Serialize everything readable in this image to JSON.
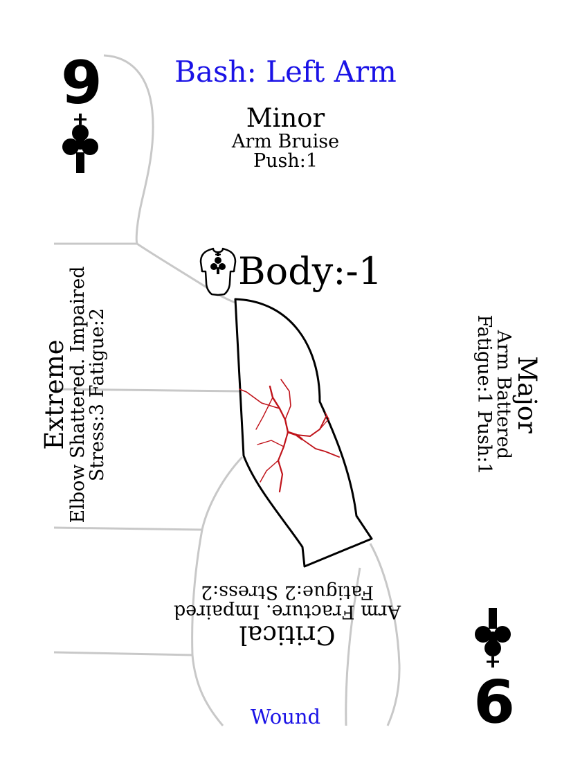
{
  "title": "Bash: Left Arm",
  "rank": "9",
  "suit_icon": "club-icon",
  "body_icon": "torso-club-icon",
  "accent_color": "#1a12e6",
  "wound_color": "#c0141b",
  "footer_label": "Wound",
  "body_stat": "Body:-1",
  "minor": {
    "heading": "Minor",
    "line1": "Arm Bruise",
    "line2": "Push:1"
  },
  "major": {
    "heading": "Major",
    "line1": "Arm Battered",
    "line2": "Fatigue:1 Push:1"
  },
  "critical": {
    "heading": "Critical",
    "line1": "Arm Fracture. Impaired",
    "line2": "Fatigue:2 Stress:2"
  },
  "extreme": {
    "heading": "Extreme",
    "line1": "Elbow Shattered. Impaired",
    "line2": "Stress:3 Fatigue:2"
  }
}
